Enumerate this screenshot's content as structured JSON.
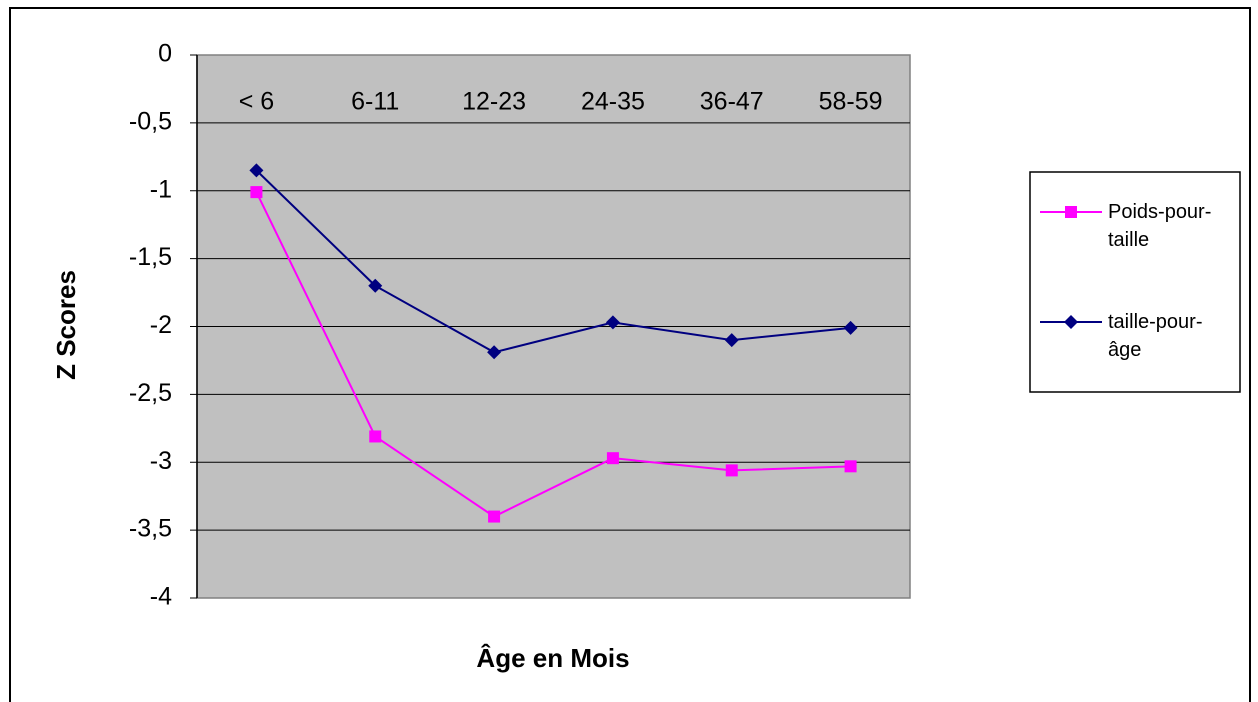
{
  "chart_data": {
    "type": "line",
    "xlabel": "Âge en Mois",
    "ylabel": "Z Scores",
    "categories": [
      "< 6",
      "6-11",
      "12-23",
      "24-35",
      "36-47",
      "58-59"
    ],
    "series": [
      {
        "name": "Poids-pour-taille",
        "color": "#ff00ff",
        "marker": "square",
        "values": [
          -1.01,
          -2.81,
          -3.4,
          -2.97,
          -3.06,
          -3.03
        ]
      },
      {
        "name": "taille-pour-âge",
        "color": "#000080",
        "marker": "diamond",
        "values": [
          -0.85,
          -1.7,
          -2.19,
          -1.97,
          -2.1,
          -2.01
        ]
      }
    ],
    "ylim": [
      -4,
      0
    ],
    "yticks": [
      0,
      {
        "value": -0.5,
        "label": "-0,5"
      },
      -1,
      {
        "value": -1.5,
        "label": "-1,5"
      },
      -2,
      {
        "value": -2.5,
        "label": "-2,5"
      },
      -3,
      {
        "value": -3.5,
        "label": "-3,5"
      },
      -4
    ],
    "grid": true,
    "legend": "right"
  }
}
